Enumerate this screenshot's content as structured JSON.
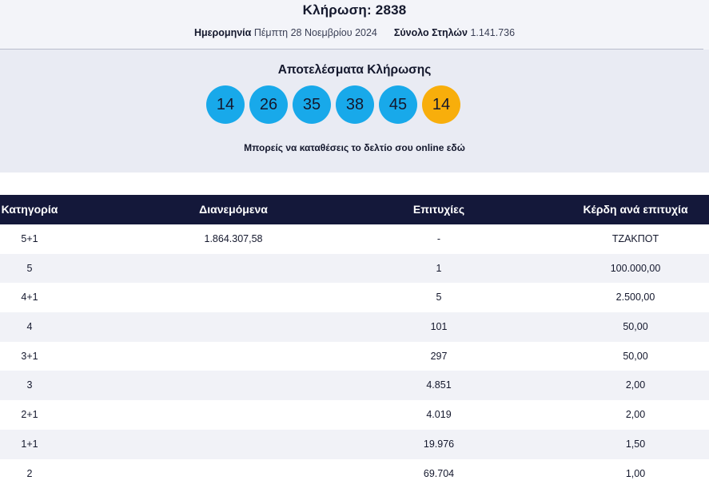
{
  "header": {
    "draw_title": "Κλήρωση: 2838",
    "date_label": "Ημερομηνία",
    "date_value": "Πέμπτη 28 Νοεμβρίου 2024",
    "total_label": "Σύνολο Στηλών",
    "total_value": "1.141.736"
  },
  "results": {
    "title": "Αποτελέσματα Κλήρωσης",
    "numbers": [
      "14",
      "26",
      "35",
      "38",
      "45"
    ],
    "bonus": "14",
    "online_text": "Μπορείς να καταθέσεις το δελτίο σου online",
    "online_link": "εδώ",
    "colors": {
      "main_ball": "#18a9ea",
      "bonus_ball": "#f8ae0b",
      "table_header": "#14183a"
    }
  },
  "table": {
    "headers": [
      "Κατηγορία",
      "Διανεμόμενα",
      "Επιτυχίες",
      "Κέρδη ανά επιτυχία"
    ],
    "rows": [
      [
        "5+1",
        "1.864.307,58",
        "-",
        "ΤΖΑΚΠΟΤ"
      ],
      [
        "5",
        "",
        "1",
        "100.000,00"
      ],
      [
        "4+1",
        "",
        "5",
        "2.500,00"
      ],
      [
        "4",
        "",
        "101",
        "50,00"
      ],
      [
        "3+1",
        "",
        "297",
        "50,00"
      ],
      [
        "3",
        "",
        "4.851",
        "2,00"
      ],
      [
        "2+1",
        "",
        "4.019",
        "2,00"
      ],
      [
        "1+1",
        "",
        "19.976",
        "1,50"
      ],
      [
        "2",
        "",
        "69.704",
        "1,00"
      ]
    ]
  }
}
